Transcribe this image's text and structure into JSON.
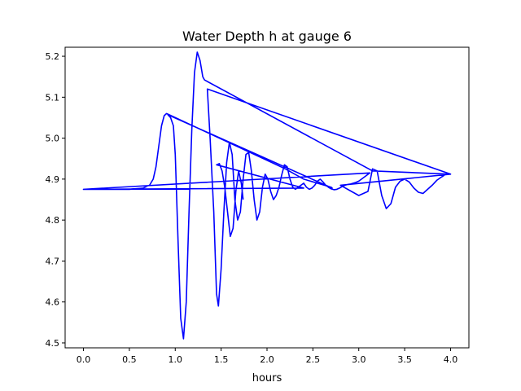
{
  "chart_data": {
    "type": "line",
    "title": "Water Depth h at gauge 6",
    "xlabel": "hours",
    "ylabel": "",
    "xlim": [
      -0.2,
      4.2
    ],
    "ylim": [
      4.488,
      5.222
    ],
    "xticks": [
      0.0,
      0.5,
      1.0,
      1.5,
      2.0,
      2.5,
      3.0,
      3.5,
      4.0
    ],
    "xtick_labels": [
      "0.0",
      "0.5",
      "1.0",
      "1.5",
      "2.0",
      "2.5",
      "3.0",
      "3.5",
      "4.0"
    ],
    "yticks": [
      4.5,
      4.6,
      4.7,
      4.8,
      4.9,
      5.0,
      5.1,
      5.2
    ],
    "ytick_labels": [
      "4.5",
      "4.6",
      "4.7",
      "4.8",
      "4.9",
      "5.0",
      "5.1",
      "5.2"
    ],
    "grid": false,
    "legend": "none",
    "series": [
      {
        "color": "#0000ff",
        "x": [
          0.0,
          0.5,
          0.65,
          0.72,
          0.76,
          0.79,
          0.82,
          0.85,
          0.88,
          0.905,
          2.2,
          2.4,
          2.7,
          2.71,
          0.92,
          0.95,
          0.98,
          1.0,
          1.03,
          1.06,
          1.09,
          1.12,
          1.15,
          1.18,
          1.21,
          1.24,
          1.27,
          1.3,
          1.32,
          3.15,
          4.0,
          2.8,
          3.0,
          3.1,
          3.15,
          3.2,
          3.25,
          3.3,
          3.35,
          3.4,
          3.45,
          3.5,
          3.55,
          3.6,
          3.65,
          3.7,
          3.75,
          3.8,
          3.85,
          3.9,
          3.95,
          4.0,
          1.35,
          1.38,
          1.42,
          1.45,
          1.47,
          1.5,
          1.53,
          1.56,
          1.59,
          1.62,
          1.65,
          1.68,
          1.71,
          1.74,
          1.77,
          1.8,
          1.83,
          1.86,
          1.89,
          1.92,
          1.95,
          1.98,
          2.01,
          2.04,
          2.07,
          2.1,
          2.13,
          2.16,
          2.19,
          2.22,
          2.25,
          2.28,
          2.31,
          2.34,
          2.37,
          2.4,
          2.43,
          2.46,
          2.49,
          2.52,
          2.55,
          2.58,
          2.61,
          2.64,
          2.67,
          2.7,
          2.73,
          2.76,
          2.79,
          2.82,
          2.85,
          2.88,
          2.91,
          2.94,
          2.97,
          3.0,
          3.03,
          3.06,
          3.09,
          3.12,
          0.0,
          2.4,
          1.45,
          1.48,
          1.51,
          1.54,
          1.57,
          1.6,
          1.63,
          1.66,
          1.69,
          1.72,
          1.74
        ],
        "y": [
          4.875,
          4.875,
          4.878,
          4.885,
          4.9,
          4.93,
          4.98,
          5.03,
          5.055,
          5.06,
          4.925,
          4.9,
          4.88,
          4.878,
          5.057,
          5.05,
          5.03,
          4.96,
          4.75,
          4.56,
          4.51,
          4.6,
          4.82,
          5.02,
          5.16,
          5.21,
          5.19,
          5.15,
          5.142,
          4.92,
          4.912,
          4.885,
          4.86,
          4.87,
          4.925,
          4.92,
          4.86,
          4.828,
          4.84,
          4.88,
          4.895,
          4.9,
          4.893,
          4.878,
          4.868,
          4.865,
          4.875,
          4.885,
          4.897,
          4.905,
          4.912,
          4.912,
          5.12,
          5.0,
          4.82,
          4.62,
          4.59,
          4.68,
          4.82,
          4.94,
          4.99,
          4.96,
          4.85,
          4.8,
          4.82,
          4.9,
          4.96,
          4.965,
          4.92,
          4.85,
          4.8,
          4.82,
          4.88,
          4.912,
          4.9,
          4.87,
          4.85,
          4.86,
          4.88,
          4.91,
          4.935,
          4.93,
          4.9,
          4.88,
          4.875,
          4.88,
          4.885,
          4.89,
          4.88,
          4.875,
          4.878,
          4.885,
          4.895,
          4.9,
          4.893,
          4.885,
          4.88,
          4.876,
          4.874,
          4.875,
          4.878,
          4.882,
          4.885,
          4.887,
          4.888,
          4.89,
          4.892,
          4.895,
          4.9,
          4.905,
          4.91,
          4.915,
          4.875,
          4.878,
          4.935,
          4.938,
          4.92,
          4.88,
          4.82,
          4.76,
          4.78,
          4.87,
          4.92,
          4.89,
          4.85
        ]
      }
    ]
  }
}
